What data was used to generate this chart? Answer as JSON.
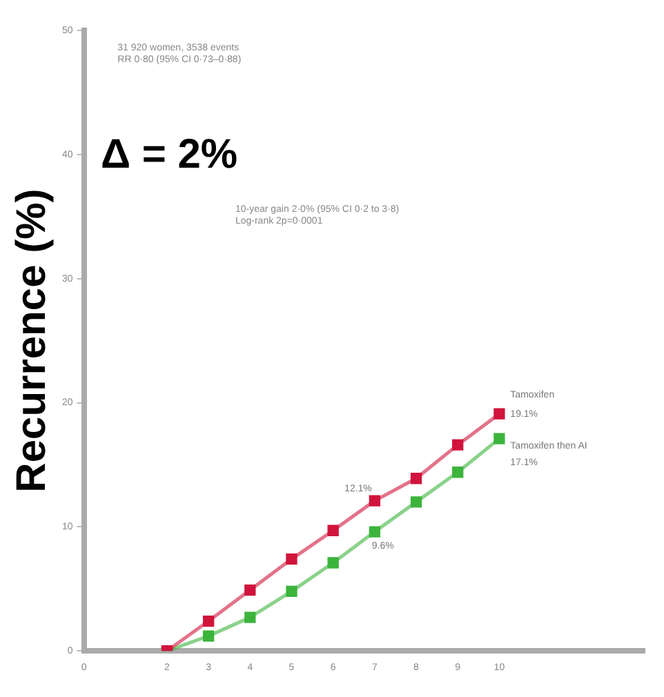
{
  "chart_data": {
    "type": "line",
    "ylabel": "Recurrence (%)",
    "x": [
      2,
      3,
      4,
      5,
      6,
      7,
      8,
      9,
      10
    ],
    "xlim": [
      0,
      13.5
    ],
    "xticks": [
      0,
      2,
      3,
      4,
      5,
      6,
      7,
      8,
      9,
      10
    ],
    "ylim": [
      0,
      50
    ],
    "yticks": [
      0,
      10,
      20,
      30,
      40,
      50
    ],
    "grid": false,
    "legend": false,
    "marker": "square",
    "line_style": "solid",
    "series": [
      {
        "name": "Tamoxifen",
        "color": "#d0143c",
        "values": [
          0,
          2.4,
          4.9,
          7.4,
          9.7,
          12.1,
          13.9,
          16.6,
          19.1
        ],
        "value_labels": [
          null,
          null,
          null,
          null,
          null,
          "12.1%",
          null,
          null,
          "19.1%"
        ]
      },
      {
        "name": "Tamoxifen then AI",
        "color": "#3cb43c",
        "values": [
          0,
          1.2,
          2.7,
          4.8,
          7.1,
          9.6,
          12.0,
          14.4,
          17.1
        ],
        "value_labels": [
          null,
          null,
          null,
          null,
          null,
          "9.6%",
          null,
          null,
          "17.1%"
        ]
      }
    ],
    "annotations": [
      "31 920 women, 3538 events\nRR 0·80 (95% CI 0·73–0·88)",
      "Δ = 2%",
      "10-year gain 2·0% (95% CI 0·2 to 3·8)\nLog-rank 2p=0·0001"
    ]
  }
}
